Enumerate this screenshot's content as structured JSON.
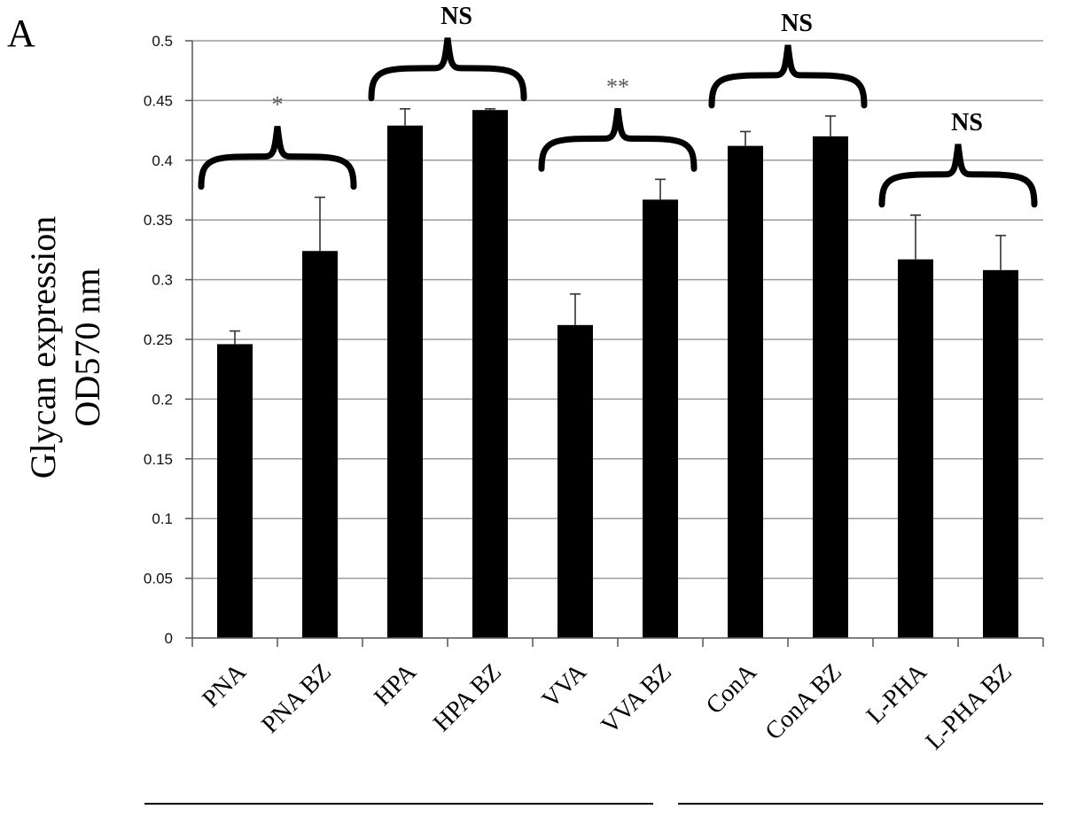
{
  "panel_label": "A",
  "chart_data": {
    "type": "bar",
    "ylabel_line1": "Glycan expression",
    "ylabel_line2": "OD570 nm",
    "ylim": [
      0,
      0.5
    ],
    "yticks": [
      "0",
      "0.05",
      "0.1",
      "0.15",
      "0.2",
      "0.25",
      "0.3",
      "0.35",
      "0.4",
      "0.45",
      "0.5"
    ],
    "grid": true,
    "categories": [
      "PNA",
      "PNA BZ",
      "HPA",
      "HPA BZ",
      "VVA",
      "VVA BZ",
      "ConA",
      "ConA BZ",
      "L-PHA",
      "L-PHA BZ"
    ],
    "values": [
      0.246,
      0.324,
      0.429,
      0.442,
      0.262,
      0.367,
      0.412,
      0.42,
      0.317,
      0.308
    ],
    "errors": [
      0.011,
      0.045,
      0.014,
      0.001,
      0.026,
      0.017,
      0.012,
      0.017,
      0.037,
      0.029
    ],
    "bar_color": "#000000",
    "significance": [
      {
        "pair": [
          0,
          1
        ],
        "label": "*"
      },
      {
        "pair": [
          2,
          3
        ],
        "label": "NS"
      },
      {
        "pair": [
          4,
          5
        ],
        "label": "**"
      },
      {
        "pair": [
          6,
          7
        ],
        "label": "NS"
      },
      {
        "pair": [
          8,
          9
        ],
        "label": "NS"
      }
    ]
  }
}
